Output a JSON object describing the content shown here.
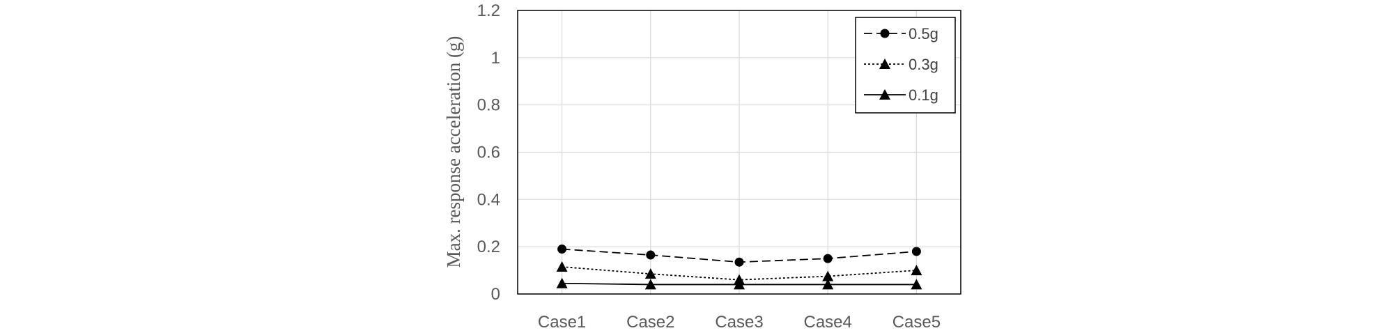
{
  "chart_data": {
    "type": "line",
    "title": "",
    "xlabel": "",
    "ylabel": "Max. response acceleration (g)",
    "categories": [
      "Case1",
      "Case2",
      "Case3",
      "Case4",
      "Case5"
    ],
    "ylim": [
      0,
      1.2
    ],
    "yticks": [
      "0",
      "0.2",
      "0.4",
      "0.6",
      "0.8",
      "1",
      "1.2"
    ],
    "grid": true,
    "legend_position": "top-right",
    "series": [
      {
        "name": "0.5g",
        "marker": "circle",
        "line": "dashed",
        "color": "#000000",
        "values": [
          0.19,
          0.165,
          0.135,
          0.15,
          0.18
        ]
      },
      {
        "name": "0.3g",
        "marker": "triangle",
        "line": "dotted",
        "color": "#000000",
        "values": [
          0.115,
          0.085,
          0.06,
          0.075,
          0.1
        ]
      },
      {
        "name": "0.1g",
        "marker": "triangle",
        "line": "solid",
        "color": "#000000",
        "values": [
          0.045,
          0.04,
          0.04,
          0.04,
          0.04
        ]
      }
    ]
  }
}
